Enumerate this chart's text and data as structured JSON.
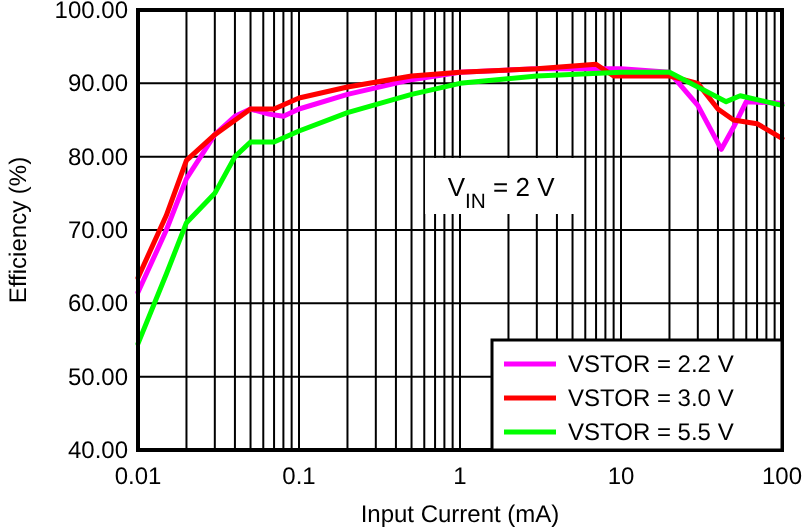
{
  "chart_data": {
    "type": "line",
    "xlabel": "Input Current (mA)",
    "ylabel": "Efficiency (%)",
    "log": "x",
    "grid": true,
    "legend": "bottom right",
    "line_style": "solid",
    "marker": "none",
    "xlim": [
      0.01,
      100
    ],
    "ylim": [
      40,
      100
    ],
    "xticks": [
      0.01,
      {
        "value": 0.02,
        "label": null
      },
      {
        "value": 0.03,
        "label": null
      },
      {
        "value": 0.04,
        "label": null
      },
      {
        "value": 0.05,
        "label": null
      },
      {
        "value": 0.06,
        "label": null
      },
      {
        "value": 0.07,
        "label": null
      },
      {
        "value": 0.08,
        "label": null
      },
      {
        "value": 0.09,
        "label": null
      },
      0.1,
      {
        "value": 0.2,
        "label": null
      },
      {
        "value": 0.3,
        "label": null
      },
      {
        "value": 0.4,
        "label": null
      },
      {
        "value": 0.5,
        "label": null
      },
      {
        "value": 0.6,
        "label": null
      },
      {
        "value": 0.7,
        "label": null
      },
      {
        "value": 0.8,
        "label": null
      },
      {
        "value": 0.9,
        "label": null
      },
      1,
      {
        "value": 2,
        "label": null
      },
      {
        "value": 3,
        "label": null
      },
      {
        "value": 4,
        "label": null
      },
      {
        "value": 5,
        "label": null
      },
      {
        "value": 6,
        "label": null
      },
      {
        "value": 7,
        "label": null
      },
      {
        "value": 8,
        "label": null
      },
      {
        "value": 9,
        "label": null
      },
      10,
      {
        "value": 20,
        "label": null
      },
      {
        "value": 30,
        "label": null
      },
      {
        "value": 40,
        "label": null
      },
      {
        "value": 50,
        "label": null
      },
      {
        "value": 60,
        "label": null
      },
      {
        "value": 70,
        "label": null
      },
      {
        "value": 80,
        "label": null
      },
      {
        "value": 90,
        "label": null
      },
      100
    ],
    "yticks": [
      {
        "value": 40,
        "label": "40.00"
      },
      {
        "value": 50,
        "label": "50.00"
      },
      {
        "value": 60,
        "label": "60.00"
      },
      {
        "value": 70,
        "label": "70.00"
      },
      {
        "value": 80,
        "label": "80.00"
      },
      {
        "value": 90,
        "label": "90.00"
      },
      {
        "value": 100,
        "label": "100.00"
      }
    ],
    "annotations": [
      "V$_{IN}$ = 2 V"
    ],
    "series": [
      {
        "name": "VSTOR = 2.2 V",
        "color": "#ff00ff",
        "x": [
          0.01,
          0.015,
          0.02,
          0.03,
          0.04,
          0.05,
          0.065,
          0.08,
          0.1,
          0.2,
          0.5,
          1,
          3,
          10,
          20,
          30,
          42,
          50,
          60,
          100
        ],
        "values": [
          61.5,
          70,
          77,
          83,
          85.5,
          86.5,
          85.8,
          85.5,
          86.5,
          88.5,
          90.5,
          91.5,
          92,
          92,
          91.5,
          87,
          81,
          84,
          87.5,
          87.3
        ]
      },
      {
        "name": "VSTOR = 3.0 V",
        "color": "#ff0000",
        "x": [
          0.01,
          0.015,
          0.02,
          0.03,
          0.05,
          0.07,
          0.1,
          0.2,
          0.5,
          1,
          3,
          7,
          9,
          20,
          30,
          40,
          50,
          70,
          100
        ],
        "values": [
          63.5,
          72,
          79.5,
          83,
          86.5,
          86.5,
          88,
          89.5,
          91,
          91.5,
          92,
          92.6,
          91,
          91,
          90,
          86.5,
          85,
          84.5,
          82.5
        ]
      },
      {
        "name": "VSTOR = 5.5 V",
        "color": "#00ff00",
        "x": [
          0.01,
          0.015,
          0.02,
          0.03,
          0.04,
          0.05,
          0.07,
          0.1,
          0.2,
          0.5,
          1,
          3,
          10,
          20,
          30,
          45,
          55,
          100
        ],
        "values": [
          54.5,
          64,
          71,
          75,
          80,
          82,
          82,
          83.5,
          86,
          88.5,
          90,
          91,
          91.5,
          91.5,
          89.5,
          87.5,
          88.3,
          87
        ]
      }
    ]
  }
}
